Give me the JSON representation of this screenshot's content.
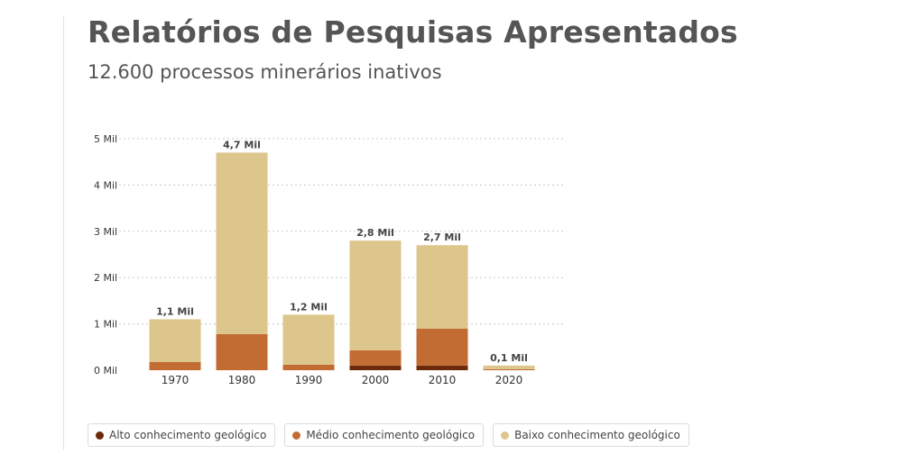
{
  "header": {
    "title": "Relatórios de Pesquisas Apresentados",
    "subtitle": "12.600 processos minerários inativos"
  },
  "chart_data": {
    "type": "bar",
    "stacked": true,
    "categories": [
      "1970",
      "1980",
      "1990",
      "2000",
      "2010",
      "2020"
    ],
    "series": [
      {
        "name": "Alto conhecimento geológico",
        "color": "#6b2a0c",
        "values": [
          0,
          0,
          0,
          0.1,
          0.1,
          0
        ]
      },
      {
        "name": "Médio conhecimento geológico",
        "color": "#c26b32",
        "values": [
          0.18,
          0.78,
          0.12,
          0.33,
          0.8,
          0.02
        ]
      },
      {
        "name": "Baixo conhecimento geológico",
        "color": "#dcc68b",
        "values": [
          0.92,
          3.92,
          1.08,
          2.37,
          1.8,
          0.08
        ]
      }
    ],
    "totals_labels": [
      "1,1 Mil",
      "4,7 Mil",
      "1,2 Mil",
      "2,8 Mil",
      "2,7 Mil",
      "0,1 Mil"
    ],
    "totals": [
      1.1,
      4.7,
      1.2,
      2.8,
      2.7,
      0.1
    ],
    "y_ticks": [
      0,
      1,
      2,
      3,
      4,
      5
    ],
    "y_tick_labels": [
      "0 Mil",
      "1 Mil",
      "2 Mil",
      "3 Mil",
      "4 Mil",
      "5 Mil"
    ],
    "ylim": [
      0,
      5
    ],
    "grid": true,
    "legend_position": "bottom"
  }
}
